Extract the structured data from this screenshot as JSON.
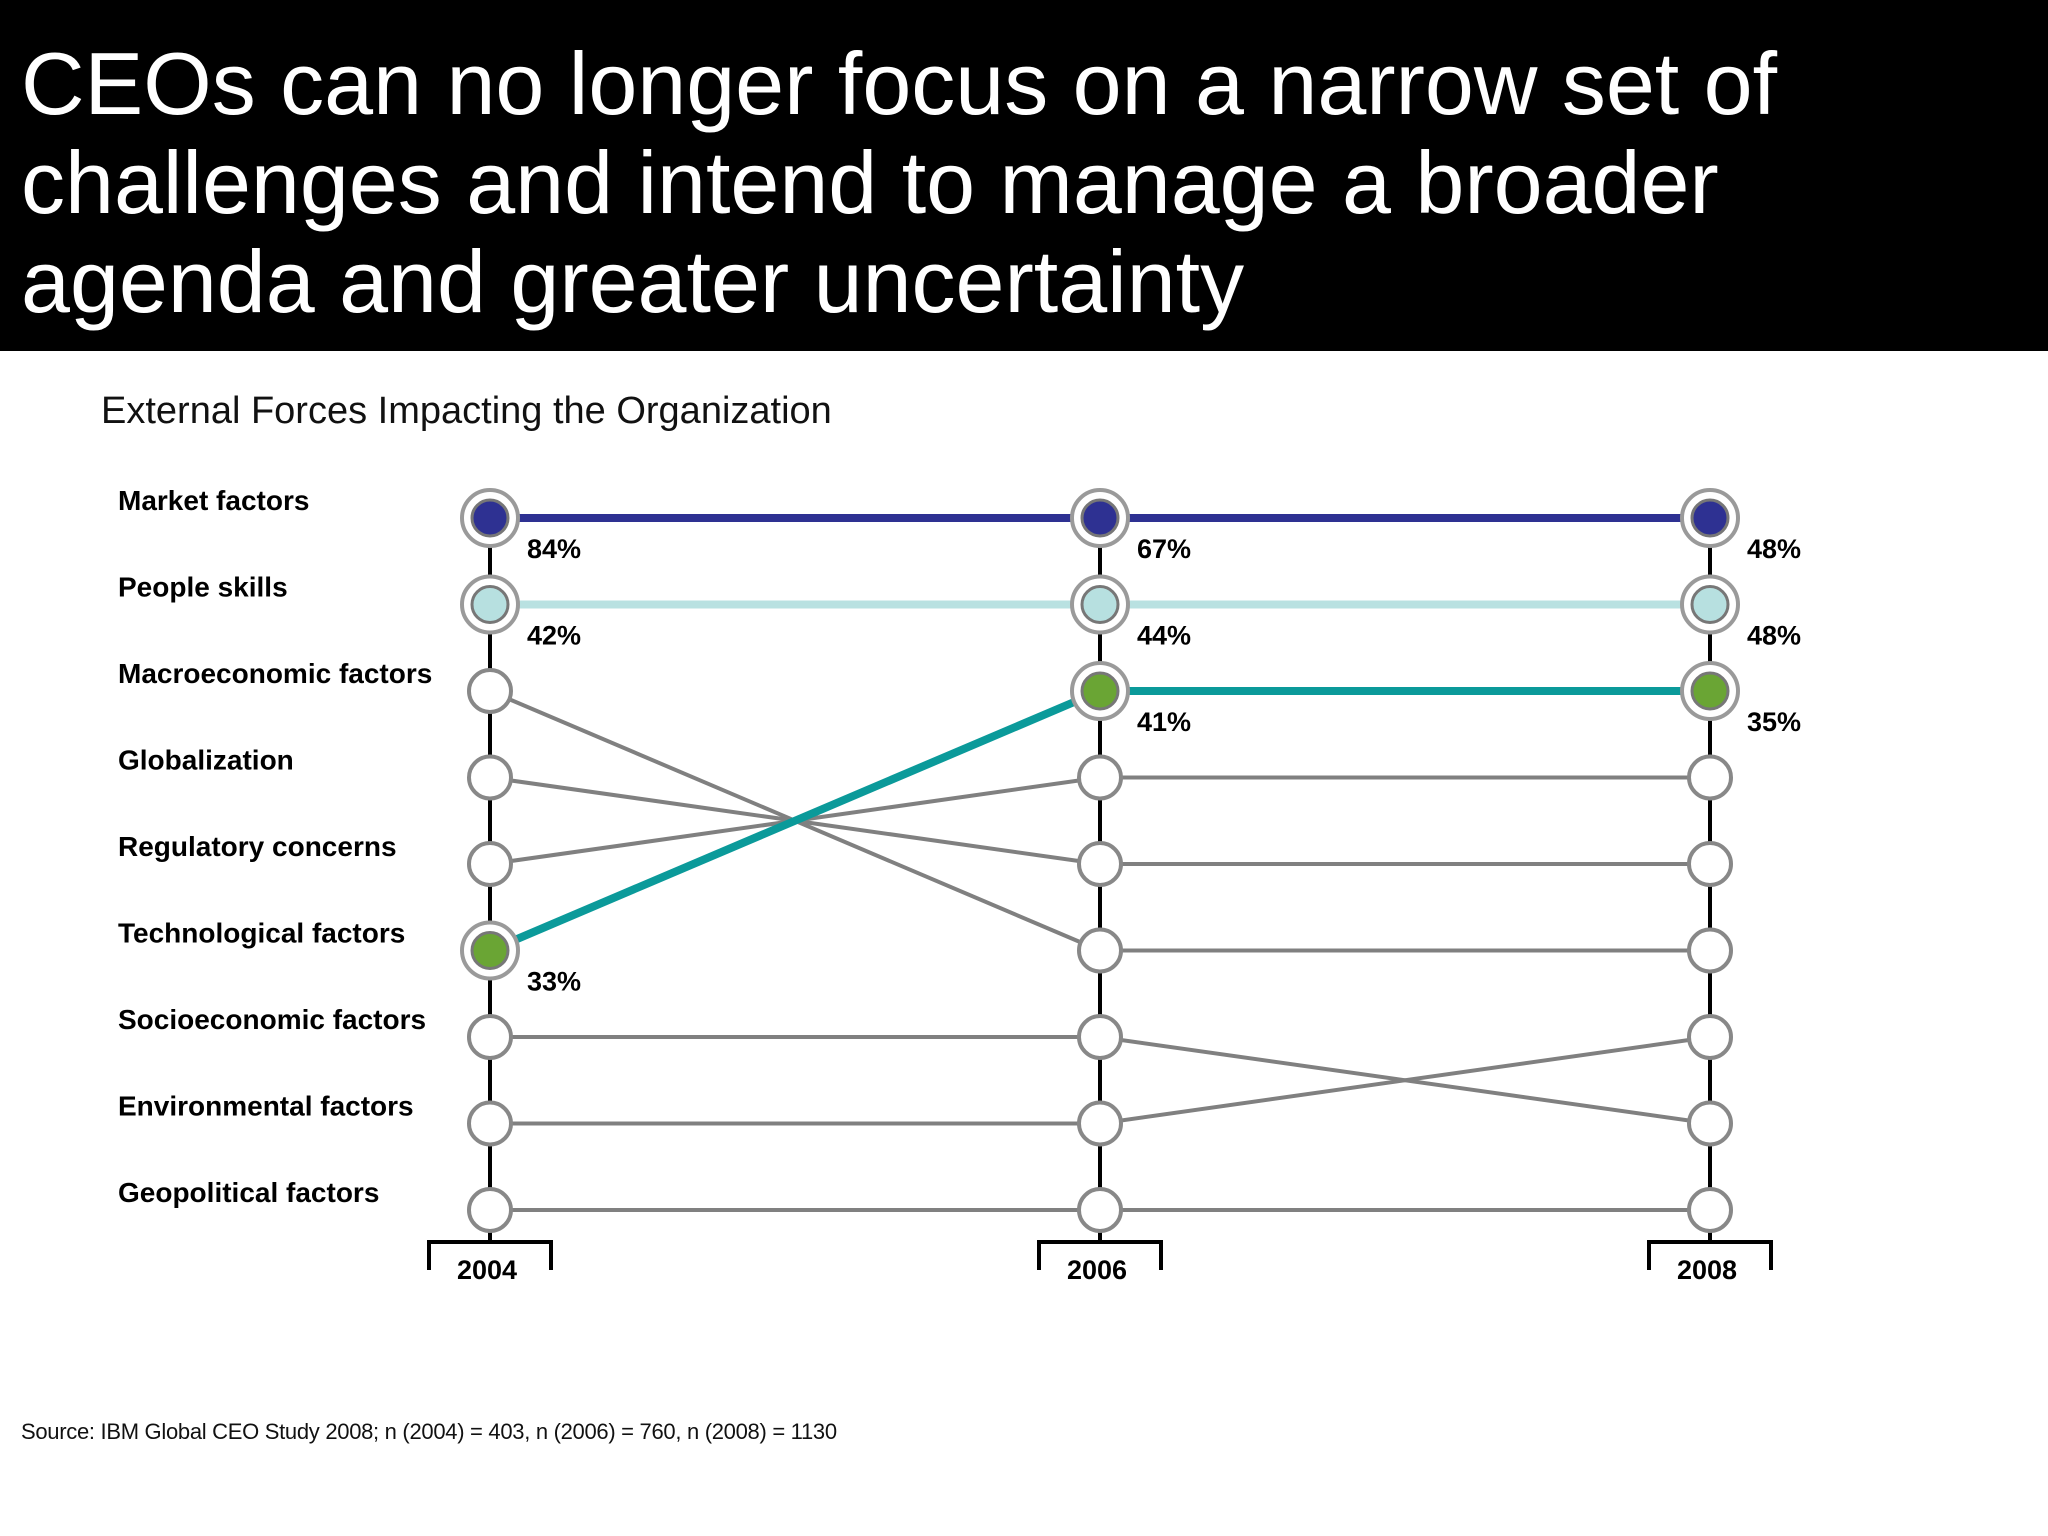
{
  "title": "CEOs can no longer focus on a narrow set of challenges and intend to manage a broader agenda and greater uncertainty",
  "source": "Source: IBM Global CEO Study 2008; n (2004) = 403, n (2006) = 760, n (2008) = 1130",
  "chart_data": {
    "type": "slope",
    "title": "External Forces Impacting the Organization",
    "years": [
      "2004",
      "2006",
      "2008"
    ],
    "categories": [
      "Market factors",
      "People skills",
      "Macroeconomic factors",
      "Globalization",
      "Regulatory concerns",
      "Technological factors",
      "Socioeconomic factors",
      "Environmental factors",
      "Geopolitical factors"
    ],
    "ranks": {
      "Market factors": [
        1,
        1,
        1
      ],
      "People skills": [
        2,
        2,
        2
      ],
      "Macroeconomic factors": [
        3,
        6,
        6
      ],
      "Globalization": [
        4,
        5,
        5
      ],
      "Regulatory concerns": [
        5,
        4,
        4
      ],
      "Technological factors": [
        6,
        3,
        3
      ],
      "Socioeconomic factors": [
        7,
        7,
        8
      ],
      "Environmental factors": [
        8,
        8,
        7
      ],
      "Geopolitical factors": [
        9,
        9,
        9
      ]
    },
    "highlighted": [
      {
        "name": "Market factors",
        "values": [
          "84%",
          "67%",
          "48%"
        ],
        "color": "#2e3192",
        "line_color": "#2e3192"
      },
      {
        "name": "People skills",
        "values": [
          "42%",
          "44%",
          "48%"
        ],
        "color": "#b7e0e0",
        "line_color": "#b9e1e1"
      },
      {
        "name": "Technological factors",
        "values": [
          "33%",
          "41%",
          "35%"
        ],
        "color": "#6aa534",
        "line_color": "#0b9a9a"
      }
    ],
    "colors": {
      "other_line": "#808080",
      "circle_ring": "#888888",
      "axis": "#000000"
    }
  }
}
